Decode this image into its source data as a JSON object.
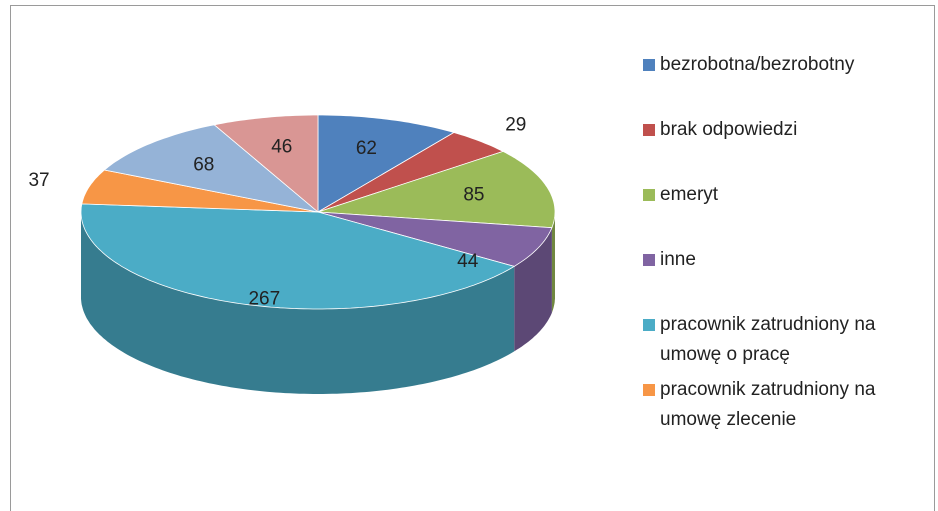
{
  "chart_data": {
    "type": "pie",
    "categories": [
      "bezrobotna/bezrobotny",
      "brak odpowiedzi",
      "emeryt",
      "inne",
      "pracownik zatrudniony na umowę o pracę",
      "pracownik zatrudniony na umowę zlecenie",
      null,
      null
    ],
    "values": [
      62,
      29,
      85,
      44,
      267,
      37,
      68,
      46
    ],
    "colors": [
      "#4f81bd",
      "#c0504d",
      "#9bbb59",
      "#8064a2",
      "#4bacc6",
      "#f79646",
      "#95b3d7",
      "#d99694"
    ],
    "three_d": true
  }
}
